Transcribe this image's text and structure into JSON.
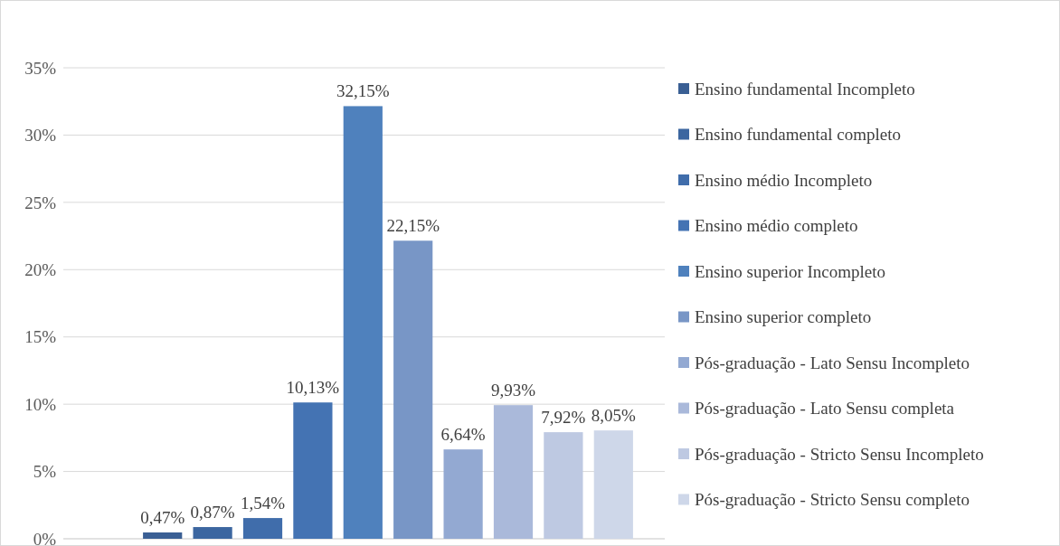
{
  "chart_data": {
    "type": "bar",
    "categories": [
      null
    ],
    "series": [
      {
        "name": "Ensino fundamental Incompleto",
        "color": "#3a5f94",
        "values": [
          0.47
        ],
        "value_labels": [
          "0,47%"
        ]
      },
      {
        "name": "Ensino fundamental completo",
        "color": "#3c66a0",
        "values": [
          0.87
        ],
        "value_labels": [
          "0,87%"
        ]
      },
      {
        "name": "Ensino médio Incompleto",
        "color": "#406dab",
        "values": [
          1.54
        ],
        "value_labels": [
          "1,54%"
        ]
      },
      {
        "name": "Ensino médio completo",
        "color": "#4473b3",
        "values": [
          10.13
        ],
        "value_labels": [
          "10,13%"
        ]
      },
      {
        "name": "Ensino superior Incompleto",
        "color": "#4f81bd",
        "values": [
          32.15
        ],
        "value_labels": [
          "32,15%"
        ]
      },
      {
        "name": "Ensino superior completo",
        "color": "#7896c6",
        "values": [
          22.15
        ],
        "value_labels": [
          "22,15%"
        ]
      },
      {
        "name": "Pós-graduação - Lato Sensu Incompleto",
        "color": "#93a9d2",
        "values": [
          6.64
        ],
        "value_labels": [
          "6,64%"
        ]
      },
      {
        "name": "Pós-graduação - Lato Sensu completa",
        "color": "#aab9da",
        "values": [
          9.93
        ],
        "value_labels": [
          "9,93%"
        ]
      },
      {
        "name": "Pós-graduação - Stricto Sensu Incompleto",
        "color": "#bec9e2",
        "values": [
          7.92
        ],
        "value_labels": [
          "7,92%"
        ]
      },
      {
        "name": "Pós-graduação - Stricto Sensu completo",
        "color": "#ced7e9",
        "values": [
          8.05
        ],
        "value_labels": [
          "8,05%"
        ]
      }
    ],
    "ylim": [
      0,
      35
    ],
    "yticks": [
      {
        "value": 0,
        "label": "0%"
      },
      {
        "value": 5,
        "label": "5%"
      },
      {
        "value": 10,
        "label": "10%"
      },
      {
        "value": 15,
        "label": "15%"
      },
      {
        "value": 20,
        "label": "20%"
      },
      {
        "value": 25,
        "label": "25%"
      },
      {
        "value": 30,
        "label": "30%"
      },
      {
        "value": 35,
        "label": "35%"
      }
    ],
    "grid": "y",
    "legend": "right"
  }
}
